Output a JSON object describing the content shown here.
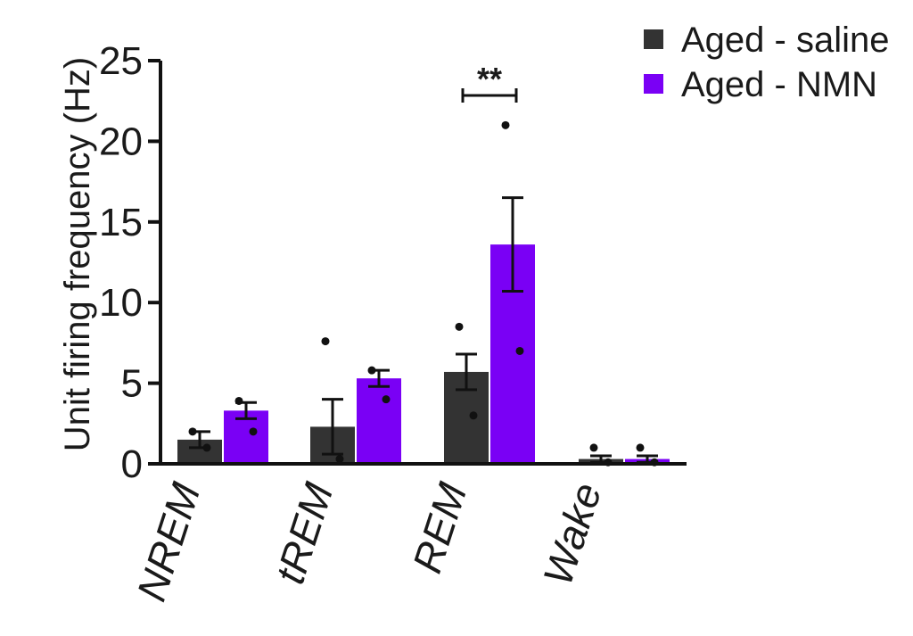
{
  "chart_data": {
    "type": "bar",
    "title": "",
    "xlabel": "",
    "ylabel": "Unit firing frequency (Hz)",
    "ylim": [
      0,
      25
    ],
    "yticks": [
      0,
      5,
      10,
      15,
      20,
      25
    ],
    "categories": [
      "NREM",
      "tREM",
      "REM",
      "Wake"
    ],
    "series": [
      {
        "name": "Aged - saline",
        "color": "#333333",
        "values": [
          1.5,
          2.3,
          5.7,
          0.3
        ],
        "errors": [
          0.5,
          1.7,
          1.1,
          0.2
        ],
        "points": [
          [
            2.0,
            1.0
          ],
          [
            7.6,
            0.3
          ],
          [
            8.5,
            3.0
          ],
          [
            1.0,
            0.1
          ]
        ]
      },
      {
        "name": "Aged - NMN",
        "color": "#7a00f5",
        "values": [
          3.3,
          5.3,
          13.6,
          0.3
        ],
        "errors": [
          0.5,
          0.5,
          2.9,
          0.2
        ],
        "points": [
          [
            3.9,
            2.0
          ],
          [
            5.8,
            4.0
          ],
          [
            21.0,
            7.0
          ],
          [
            1.0,
            0.1
          ]
        ]
      }
    ],
    "annotations": [
      {
        "category": "REM",
        "text": "**"
      }
    ],
    "legend_position": "top-right",
    "grid": false
  }
}
